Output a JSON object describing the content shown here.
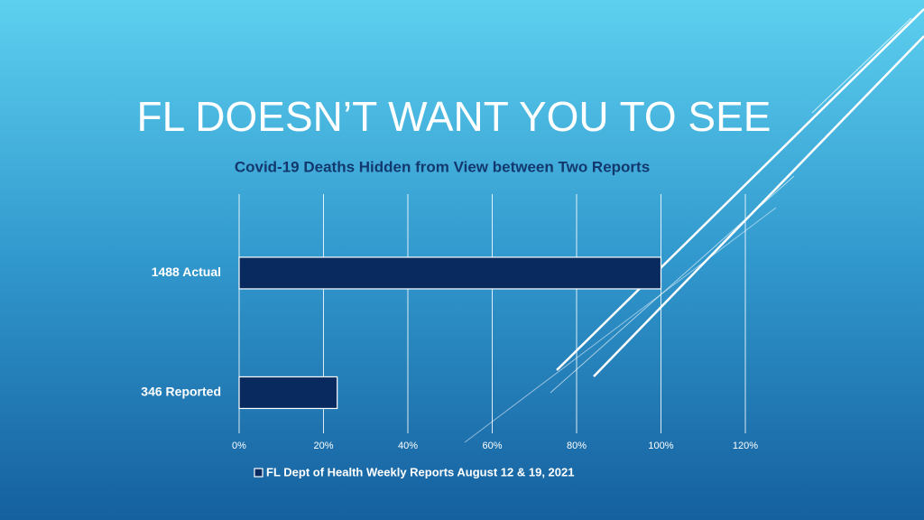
{
  "chart_data": {
    "type": "hbar",
    "title": "FL DOESN’T WANT YOU TO SEE",
    "subtitle": "Covid-19 Deaths Hidden from View between Two Reports",
    "categories": [
      "1488 Actual",
      "346 Reported"
    ],
    "series": [
      {
        "name": "FL Dept of Health Weekly Reports August 12 & 19, 2021",
        "color": "#082a5e",
        "values": [
          100,
          23.25
        ]
      }
    ],
    "xlim": [
      0,
      120
    ],
    "xticks": [
      {
        "value": 0,
        "label": "0%"
      },
      {
        "value": 20,
        "label": "20%"
      },
      {
        "value": 40,
        "label": "40%"
      },
      {
        "value": 60,
        "label": "60%"
      },
      {
        "value": 80,
        "label": "80%"
      },
      {
        "value": 100,
        "label": "100%"
      },
      {
        "value": 120,
        "label": "120%"
      }
    ],
    "grid": true,
    "legend": "bottom"
  }
}
